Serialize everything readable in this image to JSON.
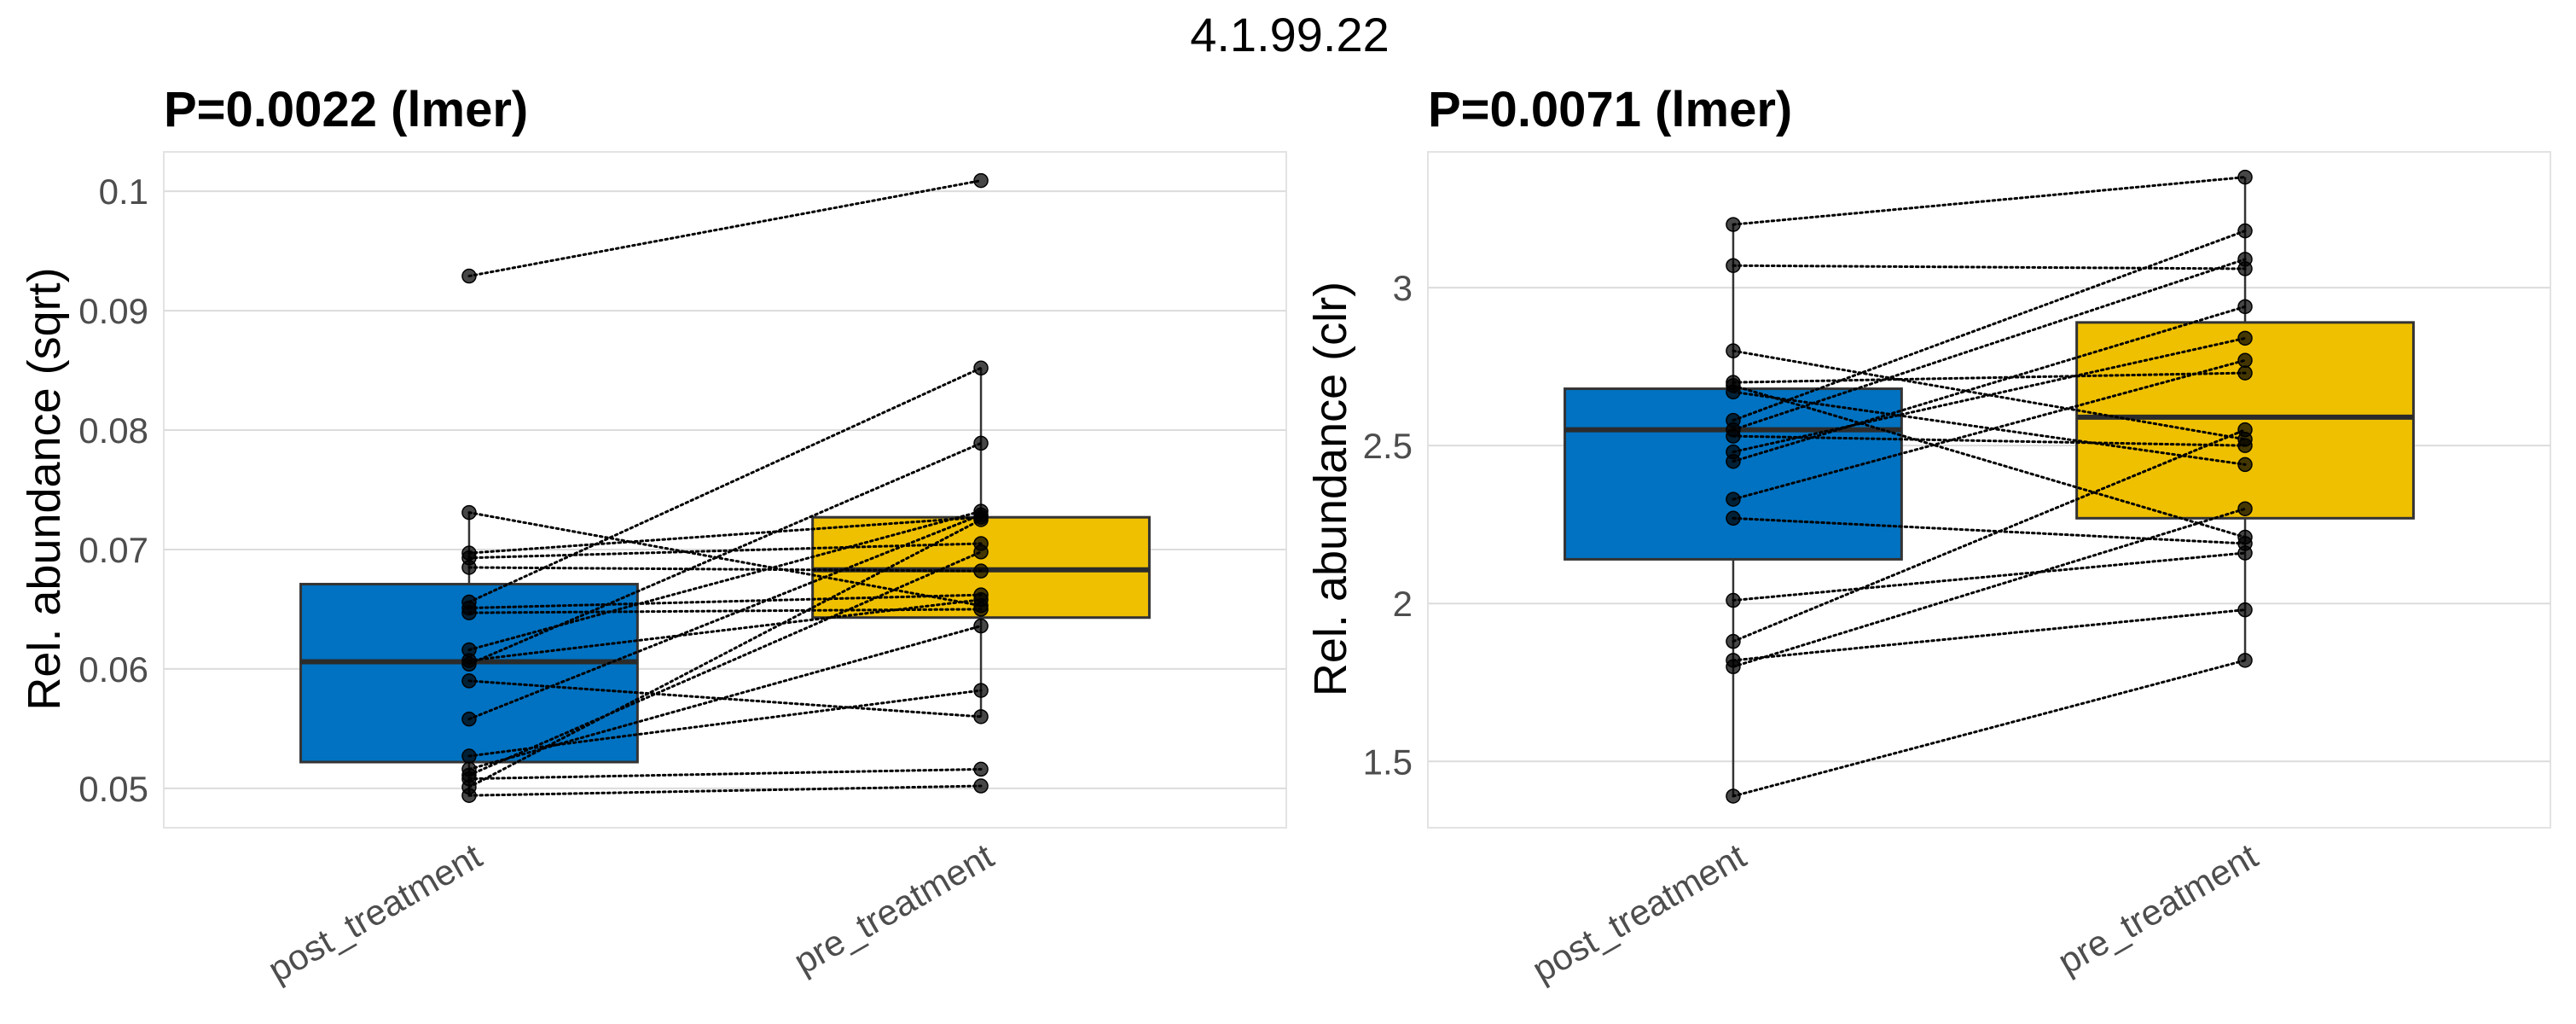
{
  "figure_title": "4.1.99.22",
  "chart_data": [
    {
      "type": "boxplot",
      "title": "P=0.0022 (lmer)",
      "xlabel": "",
      "ylabel": "Rel. abundance (sqrt)",
      "categories": [
        "post_treatment",
        "pre_treatment"
      ],
      "yticks": [
        0.05,
        0.06,
        0.07,
        0.08,
        0.09,
        0.1
      ],
      "ytick_labels": [
        "0.05",
        "0.06",
        "0.07",
        "0.08",
        "0.09",
        "0.1"
      ],
      "ylim": [
        0.0467,
        0.1033
      ],
      "colors": {
        "post_treatment": "#0072C1",
        "pre_treatment": "#EFC000"
      },
      "boxes": [
        {
          "group": "post_treatment",
          "q1": 0.0522,
          "median": 0.0606,
          "q3": 0.0671,
          "whisker_low": 0.0494,
          "whisker_high": 0.0731
        },
        {
          "group": "pre_treatment",
          "q1": 0.0643,
          "median": 0.0683,
          "q3": 0.0727,
          "whisker_low": 0.056,
          "whisker_high": 0.0852
        }
      ],
      "pairs": [
        [
          0.0929,
          0.1009
        ],
        [
          0.0731,
          0.0653
        ],
        [
          0.0697,
          0.0727
        ],
        [
          0.0693,
          0.0705
        ],
        [
          0.0685,
          0.0682
        ],
        [
          0.0656,
          0.0852
        ],
        [
          0.0651,
          0.0662
        ],
        [
          0.0647,
          0.065
        ],
        [
          0.0616,
          0.0732
        ],
        [
          0.0607,
          0.0658
        ],
        [
          0.0604,
          0.0789
        ],
        [
          0.059,
          0.056
        ],
        [
          0.0558,
          0.0729
        ],
        [
          0.0527,
          0.0582
        ],
        [
          0.0516,
          0.0636
        ],
        [
          0.0511,
          0.0698
        ],
        [
          0.0508,
          0.0516
        ],
        [
          0.0501,
          0.0725
        ],
        [
          0.0494,
          0.0502
        ]
      ]
    },
    {
      "type": "boxplot",
      "title": "P=0.0071 (lmer)",
      "xlabel": "",
      "ylabel": "Rel. abundance (clr)",
      "categories": [
        "post_treatment",
        "pre_treatment"
      ],
      "yticks": [
        1.5,
        2,
        2.5,
        3
      ],
      "ytick_labels": [
        "1.5",
        "2",
        "2.5",
        "3"
      ],
      "ylim": [
        1.29,
        3.43
      ],
      "colors": {
        "post_treatment": "#0072C1",
        "pre_treatment": "#EFC000"
      },
      "boxes": [
        {
          "group": "post_treatment",
          "q1": 2.14,
          "median": 2.55,
          "q3": 2.68,
          "whisker_low": 1.39,
          "whisker_high": 3.2
        },
        {
          "group": "pre_treatment",
          "q1": 2.27,
          "median": 2.59,
          "q3": 2.89,
          "whisker_low": 1.82,
          "whisker_high": 3.35
        }
      ],
      "pairs": [
        [
          3.2,
          3.35
        ],
        [
          3.07,
          3.06
        ],
        [
          2.8,
          2.52
        ],
        [
          2.7,
          2.73
        ],
        [
          2.69,
          2.21
        ],
        [
          2.67,
          2.44
        ],
        [
          2.58,
          3.18
        ],
        [
          2.55,
          3.09
        ],
        [
          2.53,
          2.5
        ],
        [
          2.48,
          2.84
        ],
        [
          2.45,
          2.94
        ],
        [
          2.33,
          2.77
        ],
        [
          2.27,
          2.19
        ],
        [
          2.01,
          2.16
        ],
        [
          1.88,
          2.55
        ],
        [
          1.82,
          1.98
        ],
        [
          1.8,
          2.3
        ],
        [
          1.39,
          1.82
        ]
      ]
    }
  ]
}
